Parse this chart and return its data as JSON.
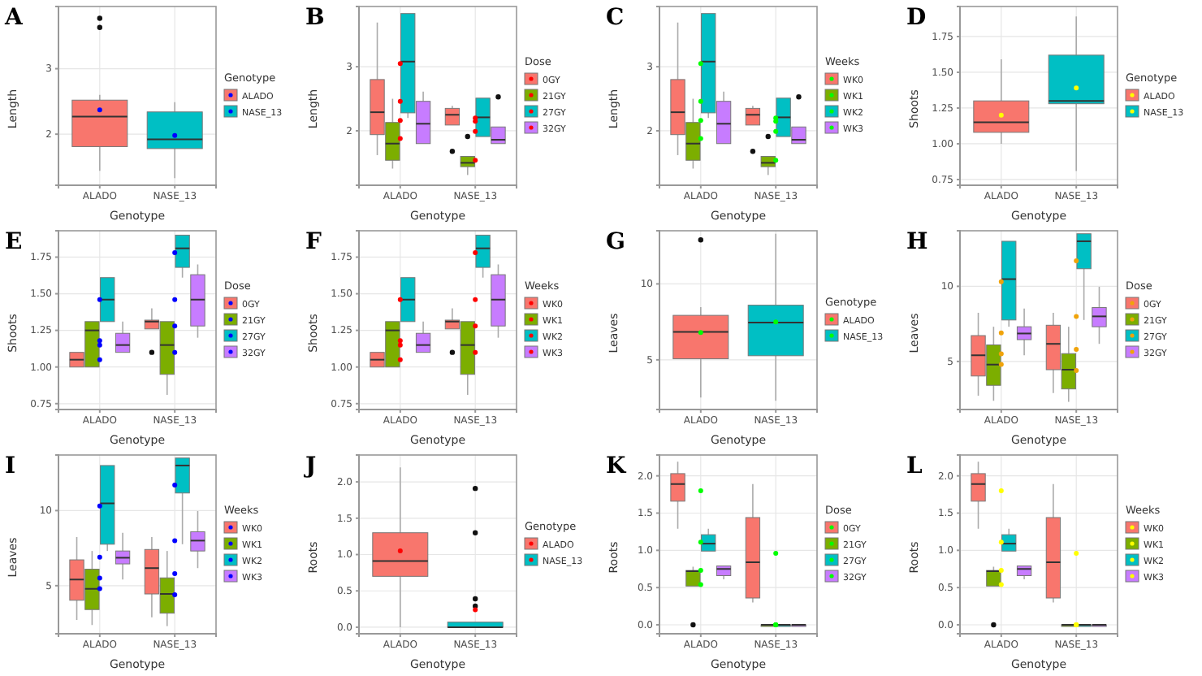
{
  "chart_data": [
    {
      "type": "box",
      "title": "A",
      "xlabel": "Genotype",
      "ylabel": "Length",
      "legend_title": "Genotype",
      "legend": "right",
      "grid": true,
      "categories": [
        "ALADO",
        "NASE_13"
      ],
      "ylim": [
        1.22,
        3.95
      ],
      "yticks": [
        2,
        3
      ],
      "colors": [
        "#f8766d",
        "#00bfc4"
      ],
      "boxes": [
        {
          "low": 1.44,
          "q1": 1.81,
          "median": 2.27,
          "q3": 2.52,
          "high": 2.6,
          "outliers": [
            3.63,
            3.77
          ]
        },
        {
          "low": 1.33,
          "q1": 1.78,
          "median": 1.92,
          "q3": 2.34,
          "high": 2.49
        }
      ],
      "series": [
        {
          "type": "scatter",
          "color": "#0000ff",
          "x": [
            "ALADO",
            "NASE_13"
          ],
          "values": [
            2.37,
            1.98
          ]
        }
      ]
    },
    {
      "type": "box",
      "title": "B",
      "xlabel": "Genotype",
      "ylabel": "Length",
      "legend_title": "Dose",
      "legend": "right",
      "grid": true,
      "categories": [
        "ALADO",
        "NASE_13"
      ],
      "ylim": [
        1.15,
        3.94
      ],
      "yticks": [
        2,
        3
      ],
      "series": [
        {
          "name": "0GY",
          "color": "#f8766d",
          "boxes": [
            {
              "low": 1.62,
              "q1": 1.94,
              "median": 2.29,
              "q3": 2.8,
              "high": 3.69
            },
            {
              "low": 2.09,
              "q1": 2.09,
              "median": 2.25,
              "q3": 2.35,
              "high": 2.39,
              "outliers": [
                1.68
              ]
            }
          ]
        },
        {
          "name": "21GY",
          "color": "#7cae00",
          "boxes": [
            {
              "low": 1.41,
              "q1": 1.54,
              "median": 1.8,
              "q3": 2.13,
              "high": 2.5
            },
            {
              "low": 1.31,
              "q1": 1.44,
              "median": 1.5,
              "q3": 1.6,
              "high": 1.6,
              "outliers": [
                1.91
              ]
            }
          ]
        },
        {
          "name": "27GY",
          "color": "#00bfc4",
          "boxes": [
            {
              "low": 2.2,
              "q1": 2.28,
              "median": 3.08,
              "q3": 3.83,
              "high": 3.83
            },
            {
              "low": 1.91,
              "q1": 1.91,
              "median": 2.21,
              "q3": 2.51,
              "high": 2.51
            }
          ]
        },
        {
          "name": "32GY",
          "color": "#c77cff",
          "boxes": [
            {
              "low": 1.8,
              "q1": 1.8,
              "median": 2.11,
              "q3": 2.46,
              "high": 2.61
            },
            {
              "low": 1.8,
              "q1": 1.8,
              "median": 1.86,
              "q3": 2.06,
              "high": 2.06,
              "outliers": [
                2.53
              ]
            }
          ]
        },
        {
          "type": "scatter",
          "color": "#ff0000",
          "x": [
            "ALADO",
            "ALADO",
            "ALADO",
            "ALADO",
            "NASE_13",
            "NASE_13",
            "NASE_13",
            "NASE_13"
          ],
          "values": [
            3.05,
            2.46,
            2.16,
            1.88,
            2.2,
            2.15,
            1.99,
            1.54
          ]
        }
      ]
    },
    {
      "type": "box",
      "title": "C",
      "xlabel": "Genotype",
      "ylabel": "Length",
      "legend_title": "Weeks",
      "legend": "right",
      "grid": true,
      "categories": [
        "ALADO",
        "NASE_13"
      ],
      "ylim": [
        1.15,
        3.94
      ],
      "yticks": [
        2,
        3
      ],
      "series": [
        {
          "name": "WK0",
          "color": "#f8766d",
          "boxes": [
            {
              "low": 1.62,
              "q1": 1.94,
              "median": 2.29,
              "q3": 2.8,
              "high": 3.69
            },
            {
              "low": 2.09,
              "q1": 2.09,
              "median": 2.25,
              "q3": 2.35,
              "high": 2.39,
              "outliers": [
                1.68
              ]
            }
          ]
        },
        {
          "name": "WK1",
          "color": "#7cae00",
          "boxes": [
            {
              "low": 1.41,
              "q1": 1.54,
              "median": 1.8,
              "q3": 2.13,
              "high": 2.5
            },
            {
              "low": 1.31,
              "q1": 1.44,
              "median": 1.5,
              "q3": 1.6,
              "high": 1.6,
              "outliers": [
                1.91
              ]
            }
          ]
        },
        {
          "name": "WK2",
          "color": "#00bfc4",
          "boxes": [
            {
              "low": 2.2,
              "q1": 2.28,
              "median": 3.08,
              "q3": 3.83,
              "high": 3.83
            },
            {
              "low": 1.91,
              "q1": 1.91,
              "median": 2.21,
              "q3": 2.51,
              "high": 2.51
            }
          ]
        },
        {
          "name": "WK3",
          "color": "#c77cff",
          "boxes": [
            {
              "low": 1.8,
              "q1": 1.8,
              "median": 2.11,
              "q3": 2.46,
              "high": 2.61
            },
            {
              "low": 1.8,
              "q1": 1.8,
              "median": 1.86,
              "q3": 2.06,
              "high": 2.06,
              "outliers": [
                2.53
              ]
            }
          ]
        },
        {
          "type": "scatter",
          "color": "#00ff00",
          "x": [
            "ALADO",
            "ALADO",
            "ALADO",
            "ALADO",
            "NASE_13",
            "NASE_13",
            "NASE_13",
            "NASE_13"
          ],
          "values": [
            3.05,
            2.46,
            2.16,
            1.88,
            2.2,
            2.15,
            1.99,
            1.54
          ]
        }
      ]
    },
    {
      "type": "box",
      "title": "D",
      "xlabel": "Genotype",
      "ylabel": "Shoots",
      "legend_title": "Genotype",
      "legend": "right",
      "grid": true,
      "categories": [
        "ALADO",
        "NASE_13"
      ],
      "ylim": [
        0.71,
        1.96
      ],
      "yticks": [
        0.75,
        {
          "value": 1,
          "label": "1.00"
        },
        1.25,
        {
          "value": 1.5,
          "label": "1.50"
        },
        1.75
      ],
      "colors": [
        "#f8766d",
        "#00bfc4"
      ],
      "boxes": [
        {
          "low": 1.0,
          "q1": 1.08,
          "median": 1.15,
          "q3": 1.3,
          "high": 1.59
        },
        {
          "low": 0.81,
          "q1": 1.28,
          "median": 1.3,
          "q3": 1.62,
          "high": 1.89
        }
      ],
      "series": [
        {
          "type": "scatter",
          "color": "#ffff00",
          "x": [
            "ALADO",
            "NASE_13"
          ],
          "values": [
            1.2,
            1.39
          ]
        }
      ]
    },
    {
      "type": "box",
      "title": "E",
      "xlabel": "Genotype",
      "ylabel": "Shoots",
      "legend_title": "Dose",
      "legend": "right",
      "grid": true,
      "categories": [
        "ALADO",
        "NASE_13"
      ],
      "ylim": [
        0.71,
        1.93
      ],
      "yticks": [
        0.75,
        {
          "value": 1,
          "label": "1.00"
        },
        1.25,
        {
          "value": 1.5,
          "label": "1.50"
        },
        1.75
      ],
      "series": [
        {
          "name": "0GY",
          "color": "#f8766d",
          "boxes": [
            {
              "low": 1.0,
              "q1": 1.0,
              "median": 1.05,
              "q3": 1.1,
              "high": 1.1
            },
            {
              "low": 1.26,
              "q1": 1.26,
              "median": 1.31,
              "q3": 1.32,
              "high": 1.4,
              "outliers": [
                1.1
              ]
            }
          ]
        },
        {
          "name": "21GY",
          "color": "#7cae00",
          "boxes": [
            {
              "low": 1.0,
              "q1": 1.0,
              "median": 1.25,
              "q3": 1.31,
              "high": 1.31
            },
            {
              "low": 0.81,
              "q1": 0.95,
              "median": 1.15,
              "q3": 1.31,
              "high": 1.31
            }
          ]
        },
        {
          "name": "27GY",
          "color": "#00bfc4",
          "boxes": [
            {
              "low": 1.31,
              "q1": 1.31,
              "median": 1.46,
              "q3": 1.61,
              "high": 1.61
            },
            {
              "low": 1.61,
              "q1": 1.68,
              "median": 1.81,
              "q3": 1.9,
              "high": 1.9
            }
          ]
        },
        {
          "name": "32GY",
          "color": "#c77cff",
          "boxes": [
            {
              "low": 1.1,
              "q1": 1.1,
              "median": 1.15,
              "q3": 1.23,
              "high": 1.31
            },
            {
              "low": 1.2,
              "q1": 1.28,
              "median": 1.46,
              "q3": 1.63,
              "high": 1.7
            }
          ]
        },
        {
          "type": "scatter",
          "color": "#0000ff",
          "x": [
            "ALADO",
            "ALADO",
            "ALADO",
            "ALADO",
            "NASE_13",
            "NASE_13",
            "NASE_13",
            "NASE_13"
          ],
          "values": [
            1.46,
            1.18,
            1.15,
            1.05,
            1.78,
            1.46,
            1.28,
            1.1
          ]
        }
      ]
    },
    {
      "type": "box",
      "title": "F",
      "xlabel": "Genotype",
      "ylabel": "Shoots",
      "legend_title": "Weeks",
      "legend": "right",
      "grid": true,
      "categories": [
        "ALADO",
        "NASE_13"
      ],
      "ylim": [
        0.71,
        1.93
      ],
      "yticks": [
        0.75,
        {
          "value": 1,
          "label": "1.00"
        },
        1.25,
        {
          "value": 1.5,
          "label": "1.50"
        },
        1.75
      ],
      "series": [
        {
          "name": "WK0",
          "color": "#f8766d",
          "boxes": [
            {
              "low": 1.0,
              "q1": 1.0,
              "median": 1.05,
              "q3": 1.1,
              "high": 1.1
            },
            {
              "low": 1.26,
              "q1": 1.26,
              "median": 1.31,
              "q3": 1.32,
              "high": 1.4,
              "outliers": [
                1.1
              ]
            }
          ]
        },
        {
          "name": "WK1",
          "color": "#7cae00",
          "boxes": [
            {
              "low": 1.0,
              "q1": 1.0,
              "median": 1.25,
              "q3": 1.31,
              "high": 1.31
            },
            {
              "low": 0.81,
              "q1": 0.95,
              "median": 1.15,
              "q3": 1.31,
              "high": 1.31
            }
          ]
        },
        {
          "name": "WK2",
          "color": "#00bfc4",
          "boxes": [
            {
              "low": 1.31,
              "q1": 1.31,
              "median": 1.46,
              "q3": 1.61,
              "high": 1.61
            },
            {
              "low": 1.61,
              "q1": 1.68,
              "median": 1.81,
              "q3": 1.9,
              "high": 1.9
            }
          ]
        },
        {
          "name": "WK3",
          "color": "#c77cff",
          "boxes": [
            {
              "low": 1.1,
              "q1": 1.1,
              "median": 1.15,
              "q3": 1.23,
              "high": 1.31
            },
            {
              "low": 1.2,
              "q1": 1.28,
              "median": 1.46,
              "q3": 1.63,
              "high": 1.7
            }
          ]
        },
        {
          "type": "scatter",
          "color": "#ff0000",
          "x": [
            "ALADO",
            "ALADO",
            "ALADO",
            "ALADO",
            "NASE_13",
            "NASE_13",
            "NASE_13",
            "NASE_13"
          ],
          "values": [
            1.46,
            1.18,
            1.15,
            1.05,
            1.78,
            1.46,
            1.28,
            1.1
          ]
        }
      ]
    },
    {
      "type": "box",
      "title": "G",
      "xlabel": "Genotype",
      "ylabel": "Leaves",
      "legend_title": "Genotype",
      "legend": "right",
      "grid": true,
      "categories": [
        "ALADO",
        "NASE_13"
      ],
      "ylim": [
        1.73,
        13.5
      ],
      "yticks": [
        5,
        10
      ],
      "colors": [
        "#f8766d",
        "#00bfc4"
      ],
      "boxes": [
        {
          "low": 2.52,
          "q1": 5.07,
          "median": 6.84,
          "q3": 7.93,
          "high": 8.47,
          "outliers": [
            12.9
          ]
        },
        {
          "low": 2.31,
          "q1": 5.27,
          "median": 7.45,
          "q3": 8.6,
          "high": 13.3
        }
      ],
      "series": [
        {
          "type": "scatter",
          "color": "#00ff00",
          "x": [
            "ALADO",
            "NASE_13"
          ],
          "values": [
            6.8,
            7.5
          ]
        }
      ]
    },
    {
      "type": "box",
      "title": "H",
      "xlabel": "Genotype",
      "ylabel": "Leaves",
      "legend_title": "Dose",
      "legend": "right",
      "grid": true,
      "categories": [
        "ALADO",
        "NASE_13"
      ],
      "ylim": [
        1.8,
        13.7
      ],
      "yticks": [
        5,
        10
      ],
      "series": [
        {
          "name": "0GY",
          "color": "#f8766d",
          "boxes": [
            {
              "low": 2.72,
              "q1": 4.03,
              "median": 5.41,
              "q3": 6.72,
              "high": 8.24
            },
            {
              "low": 2.9,
              "q1": 4.45,
              "median": 6.17,
              "q3": 7.41,
              "high": 8.24
            }
          ]
        },
        {
          "name": "21GY",
          "color": "#7cae00",
          "boxes": [
            {
              "low": 2.38,
              "q1": 3.41,
              "median": 4.79,
              "q3": 6.1,
              "high": 7.31
            },
            {
              "low": 2.31,
              "q1": 3.17,
              "median": 4.45,
              "q3": 5.52,
              "high": 7.31
            }
          ]
        },
        {
          "name": "27GY",
          "color": "#00bfc4",
          "boxes": [
            {
              "low": 7.31,
              "q1": 7.76,
              "median": 10.48,
              "q3": 13.0,
              "high": 13.0
            },
            {
              "low": 7.76,
              "q1": 11.17,
              "median": 13.0,
              "q3": 13.5,
              "high": 13.5
            }
          ]
        },
        {
          "name": "32GY",
          "color": "#c77cff",
          "boxes": [
            {
              "low": 5.41,
              "q1": 6.45,
              "median": 6.86,
              "q3": 7.31,
              "high": 8.52
            },
            {
              "low": 6.17,
              "q1": 7.31,
              "median": 8.0,
              "q3": 8.59,
              "high": 9.97
            }
          ]
        },
        {
          "type": "scatter",
          "color": "#f0a30a",
          "x": [
            "ALADO",
            "ALADO",
            "ALADO",
            "ALADO",
            "NASE_13",
            "NASE_13",
            "NASE_13",
            "NASE_13"
          ],
          "values": [
            10.3,
            6.9,
            5.5,
            4.8,
            11.7,
            8.0,
            5.8,
            4.4
          ]
        }
      ]
    },
    {
      "type": "box",
      "title": "I",
      "xlabel": "Genotype",
      "ylabel": "Leaves",
      "legend_title": "Weeks",
      "legend": "right",
      "grid": true,
      "categories": [
        "ALADO",
        "NASE_13"
      ],
      "ylim": [
        1.8,
        13.7
      ],
      "yticks": [
        5,
        10
      ],
      "series": [
        {
          "name": "WK0",
          "color": "#f8766d",
          "boxes": [
            {
              "low": 2.72,
              "q1": 4.03,
              "median": 5.41,
              "q3": 6.72,
              "high": 8.24
            },
            {
              "low": 2.9,
              "q1": 4.45,
              "median": 6.17,
              "q3": 7.41,
              "high": 8.24
            }
          ]
        },
        {
          "name": "WK1",
          "color": "#7cae00",
          "boxes": [
            {
              "low": 2.38,
              "q1": 3.41,
              "median": 4.79,
              "q3": 6.1,
              "high": 7.31
            },
            {
              "low": 2.31,
              "q1": 3.17,
              "median": 4.45,
              "q3": 5.52,
              "high": 7.31
            }
          ]
        },
        {
          "name": "WK2",
          "color": "#00bfc4",
          "boxes": [
            {
              "low": 7.31,
              "q1": 7.76,
              "median": 10.48,
              "q3": 13.0,
              "high": 13.0
            },
            {
              "low": 7.76,
              "q1": 11.17,
              "median": 13.0,
              "q3": 13.5,
              "high": 13.5
            }
          ]
        },
        {
          "name": "WK3",
          "color": "#c77cff",
          "boxes": [
            {
              "low": 5.41,
              "q1": 6.45,
              "median": 6.86,
              "q3": 7.31,
              "high": 8.52
            },
            {
              "low": 6.17,
              "q1": 7.31,
              "median": 8.0,
              "q3": 8.59,
              "high": 9.97
            }
          ]
        },
        {
          "type": "scatter",
          "color": "#0000ff",
          "x": [
            "ALADO",
            "ALADO",
            "ALADO",
            "ALADO",
            "NASE_13",
            "NASE_13",
            "NASE_13",
            "NASE_13"
          ],
          "values": [
            10.3,
            6.9,
            5.5,
            4.8,
            11.7,
            8.0,
            5.8,
            4.4
          ]
        }
      ]
    },
    {
      "type": "box",
      "title": "J",
      "xlabel": "Genotype",
      "ylabel": "Roots",
      "legend_title": "Genotype",
      "legend": "right",
      "grid": true,
      "categories": [
        "ALADO",
        "NASE_13"
      ],
      "ylim": [
        -0.09,
        2.37
      ],
      "yticks": [
        {
          "value": 0,
          "label": "0.0"
        },
        0.5,
        {
          "value": 1,
          "label": "1.0"
        },
        1.5,
        {
          "value": 2,
          "label": "2.0"
        }
      ],
      "colors": [
        "#f8766d",
        "#00bfc4"
      ],
      "boxes": [
        {
          "low": 0,
          "q1": 0.7,
          "median": 0.91,
          "q3": 1.3,
          "high": 2.2
        },
        {
          "low": 0,
          "q1": 0,
          "median": 0,
          "q3": 0.07,
          "high": 0.07,
          "outliers": [
            0.29,
            0.39,
            1.3,
            1.91
          ]
        }
      ],
      "series": [
        {
          "type": "scatter",
          "color": "#ff0000",
          "x": [
            "ALADO",
            "NASE_13"
          ],
          "values": [
            1.05,
            0.24
          ]
        }
      ]
    },
    {
      "type": "box",
      "title": "K",
      "xlabel": "Genotype",
      "ylabel": "Roots",
      "legend_title": "Dose",
      "legend": "right",
      "grid": true,
      "categories": [
        "ALADO",
        "NASE_13"
      ],
      "ylim": [
        -0.12,
        2.28
      ],
      "yticks": [
        {
          "value": 0,
          "label": "0.0"
        },
        0.5,
        {
          "value": 1,
          "label": "1.0"
        },
        1.5,
        {
          "value": 2,
          "label": "2.0"
        }
      ],
      "series": [
        {
          "name": "0GY",
          "color": "#f8766d",
          "boxes": [
            {
              "low": 1.29,
              "q1": 1.66,
              "median": 1.89,
              "q3": 2.03,
              "high": 2.19
            },
            {
              "low": 0.3,
              "q1": 0.36,
              "median": 0.84,
              "q3": 1.44,
              "high": 1.89
            }
          ]
        },
        {
          "name": "21GY",
          "color": "#7cae00",
          "boxes": [
            {
              "low": 0.52,
              "q1": 0.52,
              "median": 0.72,
              "q3": 0.73,
              "high": 0.78,
              "outliers": [
                0
              ]
            },
            {
              "low": 0,
              "q1": 0,
              "median": 0,
              "q3": 0,
              "high": 0
            }
          ]
        },
        {
          "name": "27GY",
          "color": "#00bfc4",
          "boxes": [
            {
              "low": 0.99,
              "q1": 0.99,
              "median": 1.09,
              "q3": 1.21,
              "high": 1.29
            },
            {
              "low": 0,
              "q1": 0,
              "median": 0,
              "q3": 0,
              "high": 0
            }
          ]
        },
        {
          "name": "32GY",
          "color": "#c77cff",
          "boxes": [
            {
              "low": 0.61,
              "q1": 0.66,
              "median": 0.75,
              "q3": 0.79,
              "high": 0.79
            },
            {
              "low": 0,
              "q1": 0,
              "median": 0,
              "q3": 0,
              "high": 0
            }
          ]
        },
        {
          "type": "scatter",
          "color": "#00ff00",
          "x": [
            "ALADO",
            "ALADO",
            "ALADO",
            "ALADO",
            "NASE_13",
            "NASE_13",
            "NASE_13",
            "NASE_13"
          ],
          "values": [
            1.8,
            1.11,
            0.73,
            0.54,
            0.96,
            0,
            0,
            0
          ]
        }
      ]
    },
    {
      "type": "box",
      "title": "L",
      "xlabel": "Genotype",
      "ylabel": "Roots",
      "legend_title": "Weeks",
      "legend": "right",
      "grid": true,
      "categories": [
        "ALADO",
        "NASE_13"
      ],
      "ylim": [
        -0.12,
        2.28
      ],
      "yticks": [
        {
          "value": 0,
          "label": "0.0"
        },
        0.5,
        {
          "value": 1,
          "label": "1.0"
        },
        1.5,
        {
          "value": 2,
          "label": "2.0"
        }
      ],
      "series": [
        {
          "name": "WK0",
          "color": "#f8766d",
          "boxes": [
            {
              "low": 1.29,
              "q1": 1.66,
              "median": 1.89,
              "q3": 2.03,
              "high": 2.19
            },
            {
              "low": 0.3,
              "q1": 0.36,
              "median": 0.84,
              "q3": 1.44,
              "high": 1.89
            }
          ]
        },
        {
          "name": "WK1",
          "color": "#7cae00",
          "boxes": [
            {
              "low": 0.52,
              "q1": 0.52,
              "median": 0.72,
              "q3": 0.73,
              "high": 0.78,
              "outliers": [
                0
              ]
            },
            {
              "low": 0,
              "q1": 0,
              "median": 0,
              "q3": 0,
              "high": 0
            }
          ]
        },
        {
          "name": "WK2",
          "color": "#00bfc4",
          "boxes": [
            {
              "low": 0.99,
              "q1": 0.99,
              "median": 1.09,
              "q3": 1.21,
              "high": 1.29
            },
            {
              "low": 0,
              "q1": 0,
              "median": 0,
              "q3": 0,
              "high": 0
            }
          ]
        },
        {
          "name": "WK3",
          "color": "#c77cff",
          "boxes": [
            {
              "low": 0.61,
              "q1": 0.66,
              "median": 0.75,
              "q3": 0.79,
              "high": 0.79
            },
            {
              "low": 0,
              "q1": 0,
              "median": 0,
              "q3": 0,
              "high": 0
            }
          ]
        },
        {
          "type": "scatter",
          "color": "#ffff00",
          "x": [
            "ALADO",
            "ALADO",
            "ALADO",
            "ALADO",
            "NASE_13",
            "NASE_13",
            "NASE_13",
            "NASE_13"
          ],
          "values": [
            1.8,
            1.11,
            0.73,
            0.54,
            0.96,
            0,
            0,
            0
          ]
        }
      ]
    }
  ]
}
